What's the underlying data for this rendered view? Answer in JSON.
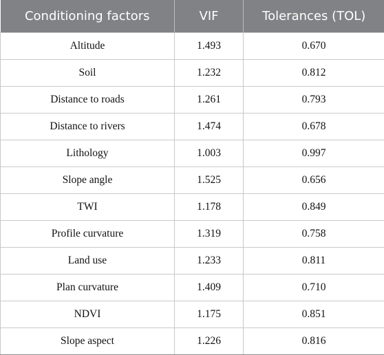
{
  "table": {
    "headers": [
      "Conditioning factors",
      "VIF",
      "Tolerances (TOL)"
    ],
    "rows": [
      [
        "Altitude",
        "1.493",
        "0.670"
      ],
      [
        "Soil",
        "1.232",
        "0.812"
      ],
      [
        "Distance to roads",
        "1.261",
        "0.793"
      ],
      [
        "Distance to rivers",
        "1.474",
        "0.678"
      ],
      [
        "Lithology",
        "1.003",
        "0.997"
      ],
      [
        "Slope angle",
        "1.525",
        "0.656"
      ],
      [
        "TWI",
        "1.178",
        "0.849"
      ],
      [
        "Profile curvature",
        "1.319",
        "0.758"
      ],
      [
        "Land use",
        "1.233",
        "0.811"
      ],
      [
        "Plan curvature",
        "1.409",
        "0.710"
      ],
      [
        "NDVI",
        "1.175",
        "0.851"
      ],
      [
        "Slope aspect",
        "1.226",
        "0.816"
      ]
    ]
  },
  "colors": {
    "header_bg": "#808285",
    "header_text": "#ffffff",
    "grid": "#c9c9c9"
  }
}
